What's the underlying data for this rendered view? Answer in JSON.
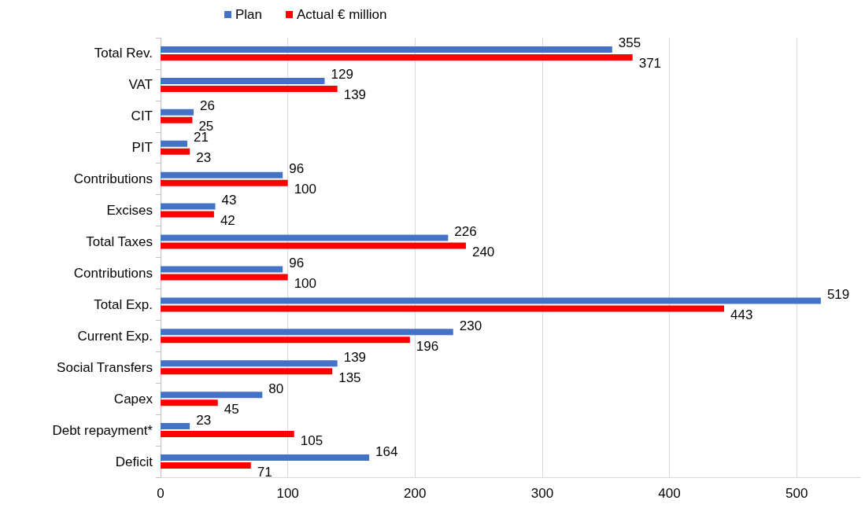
{
  "chart_data": {
    "type": "bar",
    "orientation": "horizontal",
    "categories": [
      "Total Rev.",
      "VAT",
      "CIT",
      "PIT",
      "Contributions",
      "Excises",
      "Total Taxes",
      "Contributions",
      "Total Exp.",
      "Current Exp.",
      "Social Transfers",
      "Capex",
      "Debt repayment*",
      "Deficit"
    ],
    "series": [
      {
        "name": "Plan",
        "color": "#4472c4",
        "values": [
          355,
          129,
          26,
          21,
          96,
          43,
          226,
          96,
          519,
          230,
          139,
          80,
          23,
          164
        ]
      },
      {
        "name": "Actual € million",
        "color": "#ff0000",
        "values": [
          371,
          139,
          25,
          23,
          100,
          42,
          240,
          100,
          443,
          196,
          135,
          45,
          105,
          71
        ]
      }
    ],
    "xlim": [
      0,
      550
    ],
    "xticks": [
      0,
      100,
      200,
      300,
      400,
      500
    ],
    "grid": "x",
    "legend": "top",
    "data_labels": true
  }
}
